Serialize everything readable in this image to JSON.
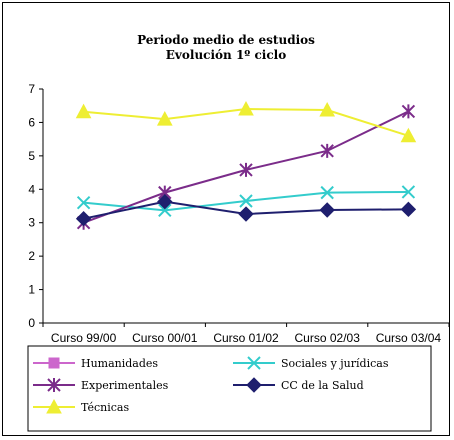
{
  "chart_data": {
    "type": "line",
    "title": "Periodo medio de estudios",
    "subtitle": "Evolución 1º ciclo",
    "categories": [
      "Curso 99/00",
      "Curso 00/01",
      "Curso 01/02",
      "Curso 02/03",
      "Curso 03/04"
    ],
    "ylim": [
      0,
      7
    ],
    "yticks": [
      0,
      1,
      2,
      3,
      4,
      5,
      6,
      7
    ],
    "grid": false,
    "legend_position": "bottom",
    "series": [
      {
        "name": "Humanidades",
        "values": [
          null,
          null,
          null,
          null,
          null
        ],
        "color": "#CC66CC",
        "marker": "square"
      },
      {
        "name": "Sociales y jurídicas",
        "values": [
          3.6,
          3.37,
          3.65,
          3.9,
          3.92
        ],
        "color": "#33CCCC",
        "marker": "x"
      },
      {
        "name": "Experimentales",
        "values": [
          3.0,
          3.9,
          4.58,
          5.15,
          6.33
        ],
        "color": "#7B2C8A",
        "marker": "star"
      },
      {
        "name": "CC de la Salud",
        "values": [
          3.12,
          3.63,
          3.26,
          3.38,
          3.4
        ],
        "color": "#1F1F6E",
        "marker": "diamond"
      },
      {
        "name": "Técnicas",
        "values": [
          6.32,
          6.1,
          6.4,
          6.37,
          5.6
        ],
        "color": "#EEEE33",
        "marker": "triangle"
      }
    ]
  }
}
